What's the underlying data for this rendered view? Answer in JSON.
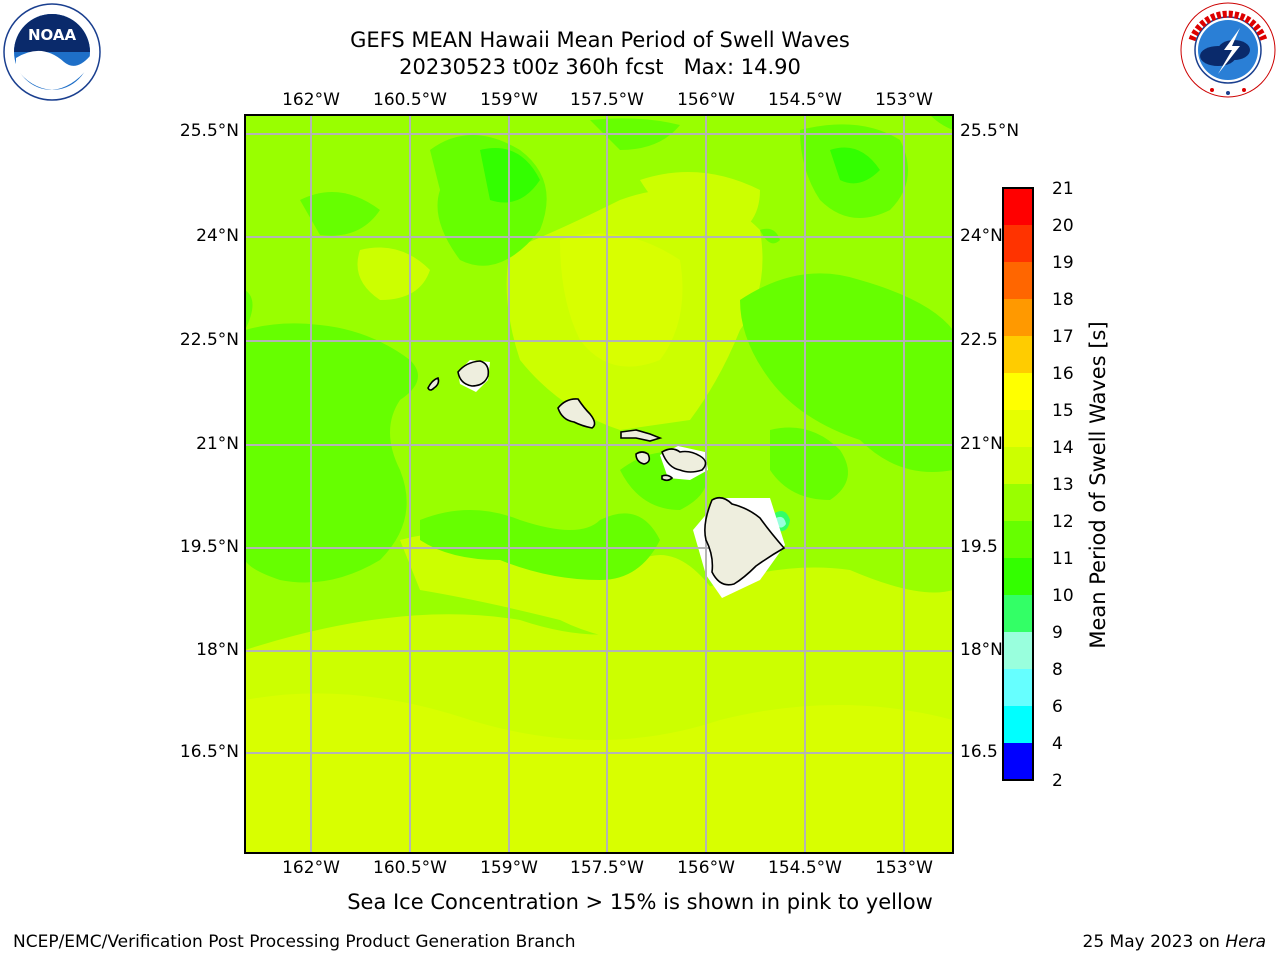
{
  "title": {
    "line1": "GEFS MEAN Hawaii Mean Period of Swell Waves",
    "line2": "20230523 t00z 360h fcst   Max: 14.90"
  },
  "logos": {
    "left": {
      "text": "NOAA",
      "ring_text": "NATIONAL OCEANIC AND ATMOSPHERIC ADMINISTRATION · U.S. DEPARTMENT OF COMMERCE",
      "icon": "noaa-logo"
    },
    "right": {
      "ring_text": "NATIONAL WEATHER SERVICE",
      "icon": "nws-logo"
    }
  },
  "map": {
    "lon_labels": [
      "162°W",
      "160.5°W",
      "159°W",
      "157.5°W",
      "156°W",
      "154.5°W",
      "153°W"
    ],
    "lat_labels": [
      "25.5°N",
      "24°N",
      "22.5°N",
      "21°N",
      "19.5°N",
      "18°N",
      "16.5°N"
    ],
    "lat_labels_right": [
      "25.5°N",
      "24°N",
      "22.5",
      "21°N",
      "19.5",
      "18°N",
      "16.5"
    ],
    "islands": [
      "Niihau",
      "Kauai",
      "Oahu",
      "Molokai",
      "Lanai",
      "Maui",
      "Kahoolawe",
      "Hawaii"
    ]
  },
  "colorbar": {
    "label": "Mean Period of Swell Waves [s]",
    "ticks": [
      "21",
      "20",
      "19",
      "18",
      "17",
      "16",
      "15",
      "14",
      "13",
      "12",
      "11",
      "10",
      "9",
      "8",
      "6",
      "4",
      "2"
    ],
    "colors": [
      "#ff0000",
      "#ff3300",
      "#ff6600",
      "#ff9900",
      "#ffcc00",
      "#ffff00",
      "#e6ff00",
      "#ccff00",
      "#99ff00",
      "#66ff00",
      "#33ff00",
      "#33ff66",
      "#99ffdd",
      "#66ffff",
      "#00ffff",
      "#0088ff",
      "#0000ff"
    ]
  },
  "footnote": "Sea Ice Concentration > 15% is shown in pink to yellow",
  "credit": "NCEP/EMC/Verification Post Processing Product Generation Branch",
  "stamp": {
    "date": "25 May 2023 on ",
    "host": "Hera"
  }
}
